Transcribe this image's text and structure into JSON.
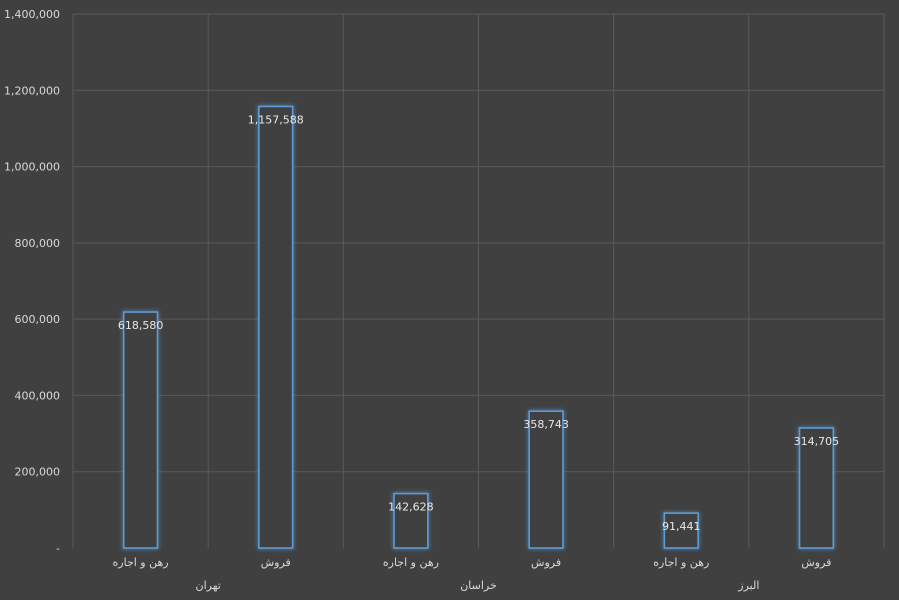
{
  "chart_data": {
    "type": "bar",
    "title": "",
    "xlabel": "",
    "ylabel": "",
    "ylim": [
      0,
      1400000
    ],
    "yticks": [
      0,
      200000,
      400000,
      600000,
      800000,
      1000000,
      1200000,
      1400000
    ],
    "ytick_labels": [
      "-",
      "200,000",
      "400,000",
      "600,000",
      "800,000",
      "1,000,000",
      "1,200,000",
      "1,400,000"
    ],
    "grid": true,
    "groups": [
      {
        "label": "تهران",
        "categories": [
          "رهن و اجاره",
          "فروش"
        ],
        "values": [
          618580,
          1157588
        ],
        "value_labels": [
          "618,580",
          "1,157,588"
        ]
      },
      {
        "label": "خراسان",
        "categories": [
          "رهن و اجاره",
          "فروش"
        ],
        "values": [
          142628,
          358743
        ],
        "value_labels": [
          "142,628",
          "358,743"
        ]
      },
      {
        "label": "البرز",
        "categories": [
          "رهن و اجاره",
          "فروش"
        ],
        "values": [
          91441,
          314705
        ],
        "value_labels": [
          "91,441",
          "314,705"
        ]
      }
    ],
    "colors": {
      "background": "#404040",
      "bar_fill": "#404040",
      "bar_stroke": "#5b9bd5",
      "bar_glow": "#2e75b6",
      "grid": "#5a5a5a",
      "text": "#d9d9d9"
    }
  }
}
